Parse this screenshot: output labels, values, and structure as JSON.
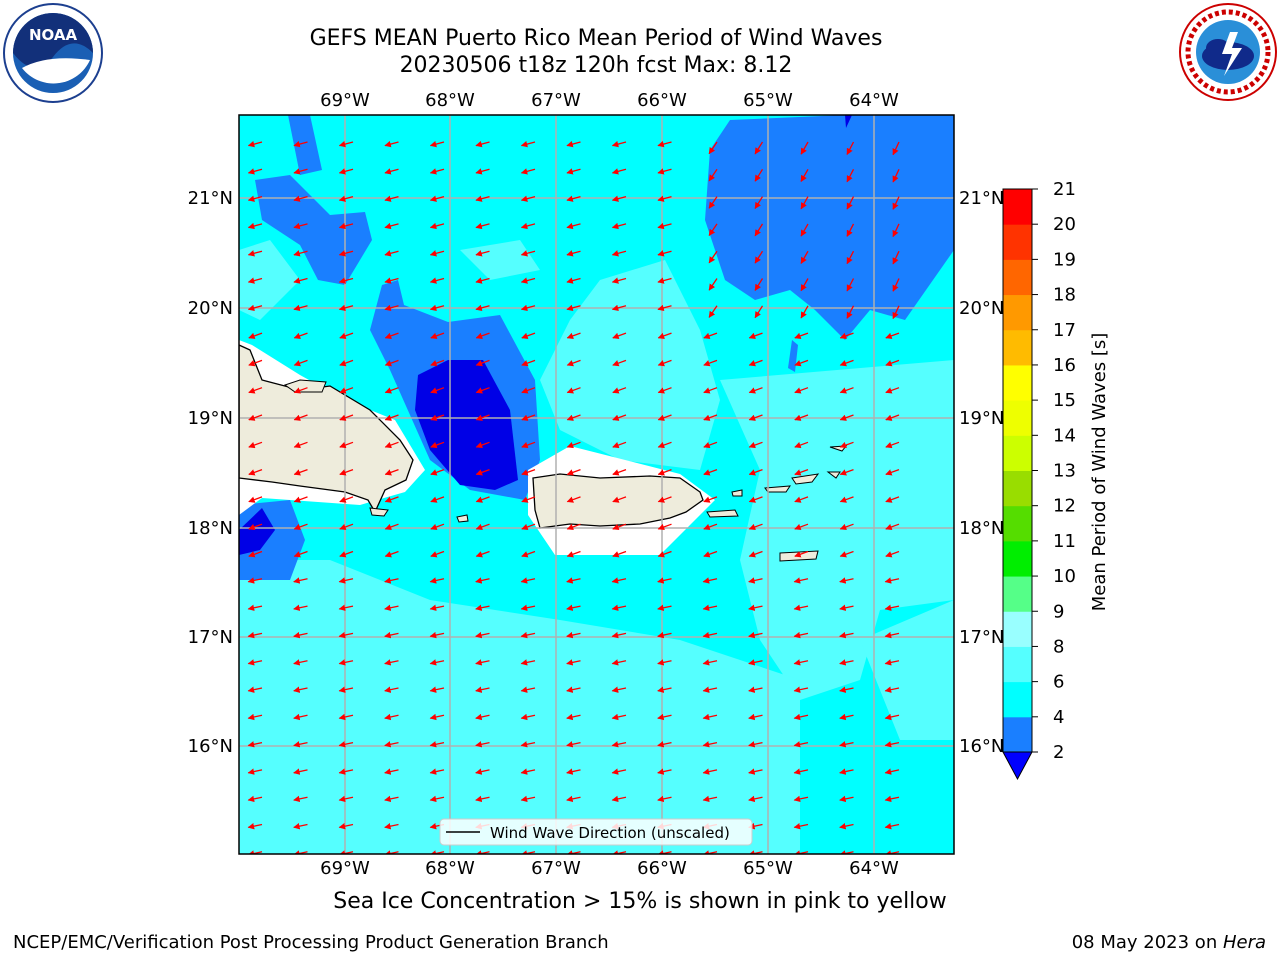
{
  "header": {
    "title_line1": "GEFS MEAN Puerto Rico Mean Period of Wind Waves",
    "title_line2": "20230506 t18z 120h fcst   Max: 8.12"
  },
  "logos": {
    "left": "noaa-logo",
    "right": "nws-logo"
  },
  "map": {
    "lon_labels": [
      "69°W",
      "68°W",
      "67°W",
      "66°W",
      "65°W",
      "64°W"
    ],
    "lat_labels": [
      "21°N",
      "20°N",
      "19°N",
      "18°N",
      "17°N",
      "16°N"
    ],
    "legend_label": "Wind Wave Direction (unscaled)",
    "colors": {
      "land": "#eeecdc",
      "cyan": "#00ffff",
      "light_cyan": "#55ffff",
      "blue": "#1a7fff",
      "dark_blue": "#0000e6",
      "arrow": "#ff0000",
      "grid": "#b0b0b0"
    },
    "wind_direction_icon": "red-arrow-icon"
  },
  "colorbar": {
    "label": "Mean Period of Wind Waves [s]",
    "ticks": [
      "2",
      "4",
      "6",
      "8",
      "9",
      "10",
      "11",
      "12",
      "13",
      "14",
      "15",
      "16",
      "17",
      "18",
      "19",
      "20",
      "21"
    ],
    "colors": [
      "#0000ff",
      "#1a7fff",
      "#00ffff",
      "#55ffff",
      "#99ffff",
      "#55ff88",
      "#00ee00",
      "#55dd00",
      "#99dd00",
      "#ccff00",
      "#eeff00",
      "#ffff00",
      "#ffbb00",
      "#ff9900",
      "#ff6600",
      "#ff3300",
      "#ff0000"
    ],
    "extend_color": "#0000ff"
  },
  "footer": {
    "note": "Sea Ice Concentration > 15% is shown in pink to yellow",
    "left": "NCEP/EMC/Verification Post Processing Product Generation Branch",
    "right_prefix": "08 May 2023 on ",
    "right_host": "Hera"
  }
}
